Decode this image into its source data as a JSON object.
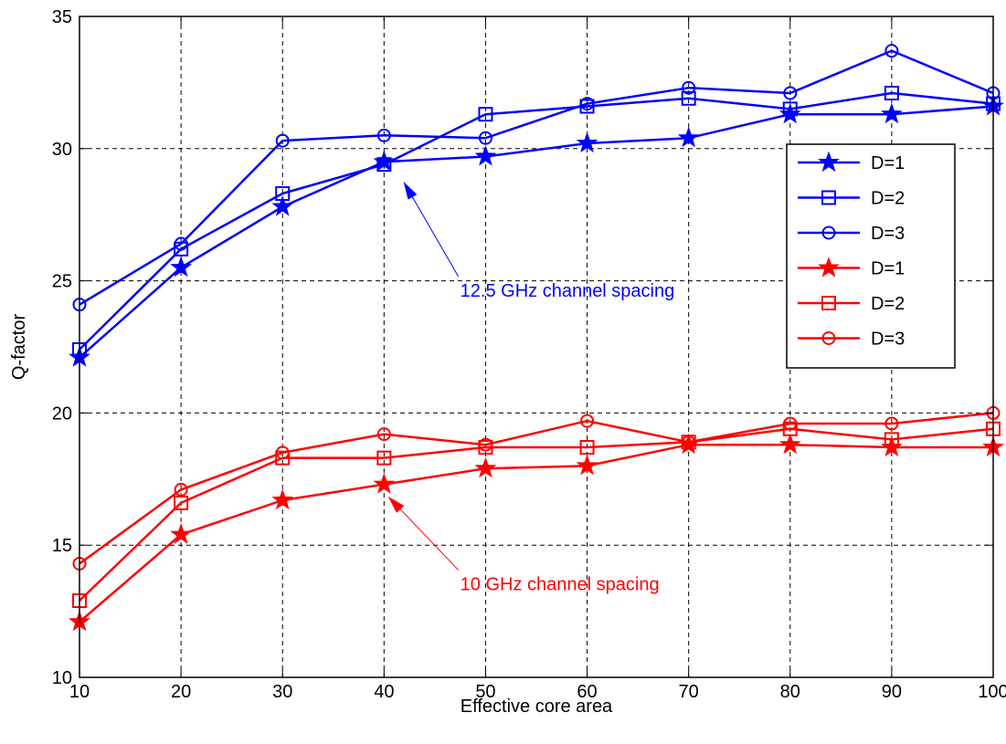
{
  "chart_data": {
    "type": "line",
    "title": "",
    "xlabel": "Effective core area",
    "ylabel": "Q-factor",
    "xlim": [
      10,
      100
    ],
    "ylim": [
      10,
      35
    ],
    "xticks": [
      10,
      20,
      30,
      40,
      50,
      60,
      70,
      80,
      90,
      100
    ],
    "yticks": [
      10,
      15,
      20,
      25,
      30,
      35
    ],
    "grid": true,
    "legend_position": "upper-right",
    "x": [
      10,
      20,
      30,
      40,
      50,
      60,
      70,
      80,
      90,
      100
    ],
    "series": [
      {
        "name": "D=1",
        "color": "#0000ff",
        "marker": "star",
        "values": [
          22.1,
          25.5,
          27.8,
          29.5,
          29.7,
          30.2,
          30.4,
          31.3,
          31.3,
          31.6
        ]
      },
      {
        "name": "D=2",
        "color": "#0000ff",
        "marker": "square",
        "values": [
          22.4,
          26.2,
          28.3,
          29.4,
          31.3,
          31.6,
          31.9,
          31.5,
          32.1,
          31.7
        ]
      },
      {
        "name": "D=3",
        "color": "#0000ff",
        "marker": "circle",
        "values": [
          24.1,
          26.4,
          30.3,
          30.5,
          30.4,
          31.7,
          32.3,
          32.1,
          33.7,
          32.1
        ]
      },
      {
        "name": "D=1",
        "color": "#ff0000",
        "marker": "star",
        "values": [
          12.1,
          15.4,
          16.7,
          17.3,
          17.9,
          18.0,
          18.8,
          18.8,
          18.7,
          18.7
        ]
      },
      {
        "name": "D=2",
        "color": "#ff0000",
        "marker": "square",
        "values": [
          12.9,
          16.6,
          18.3,
          18.3,
          18.7,
          18.7,
          18.9,
          19.4,
          19.0,
          19.4
        ]
      },
      {
        "name": "D=3",
        "color": "#ff0000",
        "marker": "circle",
        "values": [
          14.3,
          17.1,
          18.5,
          19.2,
          18.8,
          19.7,
          18.9,
          19.6,
          19.6,
          20.0
        ]
      }
    ],
    "annotations": [
      {
        "text": "12.5 GHz channel spacing",
        "color": "#0000ff",
        "text_x": 47.5,
        "text_y": 24.4,
        "arrow_to_x": 42,
        "arrow_to_y": 28.7
      },
      {
        "text": "10 GHz channel spacing",
        "color": "#ff0000",
        "text_x": 47.5,
        "text_y": 13.3,
        "arrow_to_x": 40.5,
        "arrow_to_y": 16.8
      }
    ]
  }
}
